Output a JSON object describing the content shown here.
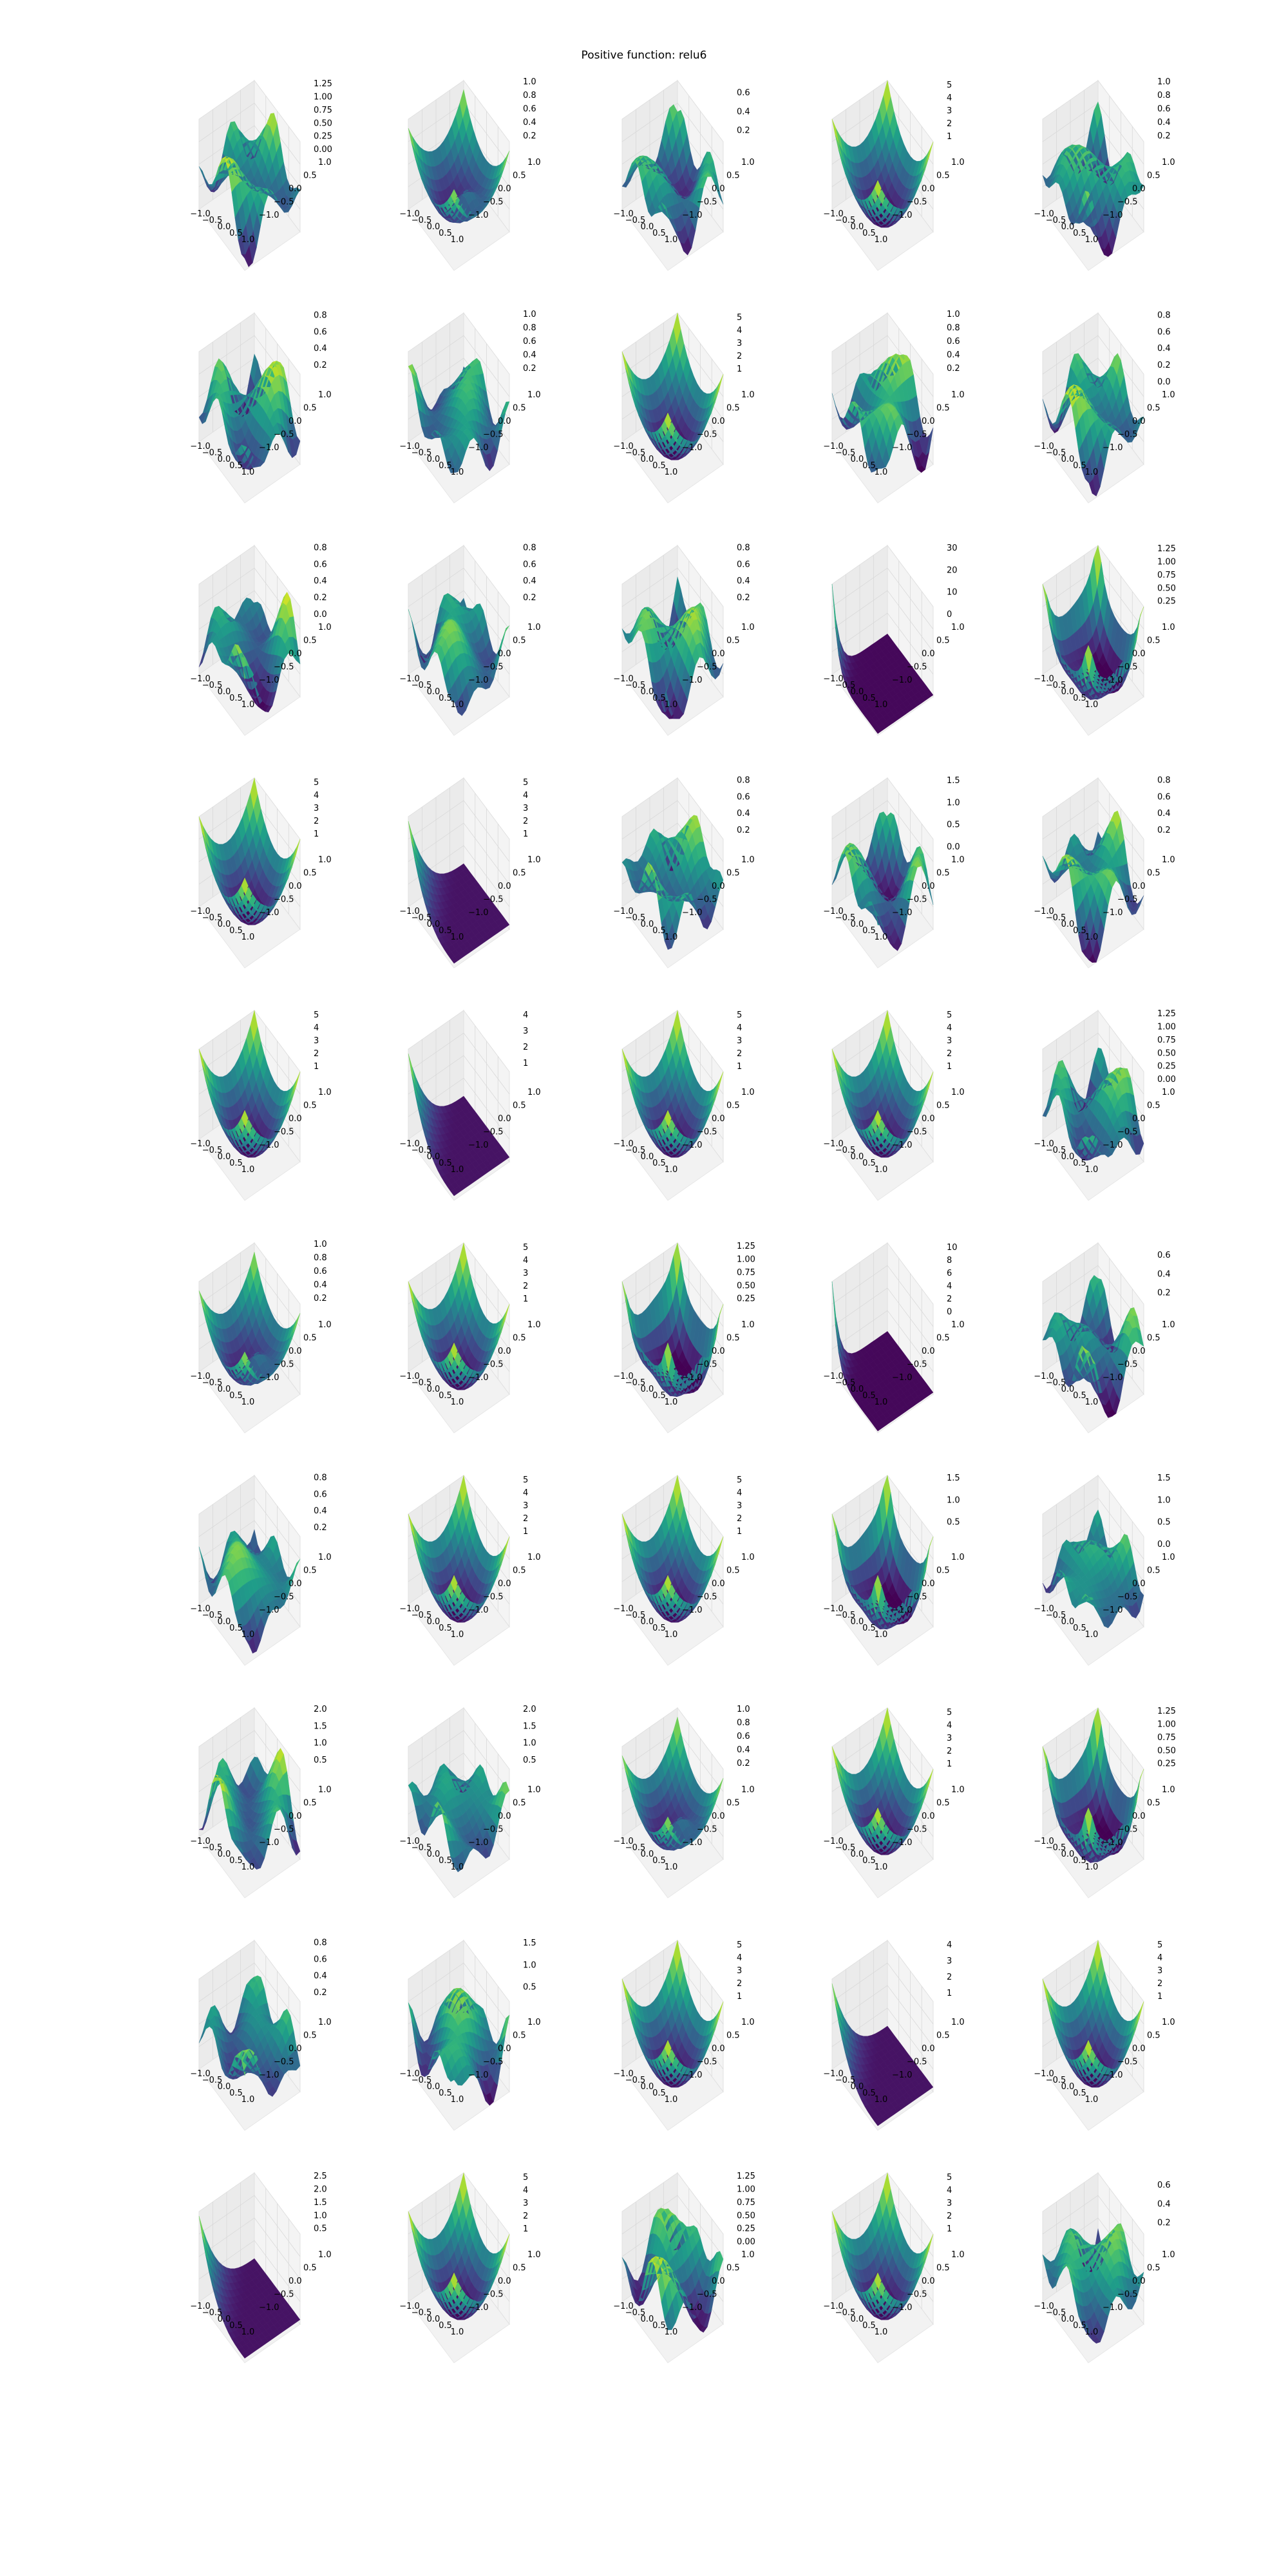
{
  "figure": {
    "title": "Positive function: relu6"
  },
  "colors": {
    "colormap": "viridis",
    "pane": "#f2f2f2",
    "grid": "#d9d9d9"
  },
  "chart_data": {
    "type": "surface",
    "grid": {
      "rows": 10,
      "cols": 5
    },
    "x_ticks": [
      "−1.0",
      "−0.5",
      "0.0",
      "0.5",
      "1.0"
    ],
    "y_ticks": [
      "1.0",
      "0.5",
      "0.0",
      "−0.5",
      "−1.0"
    ],
    "xlim": [
      -1,
      1
    ],
    "ylim": [
      -1,
      1
    ],
    "panels": [
      {
        "zlim": [
          0,
          1.35
        ],
        "z_ticks": [
          "0.00",
          "0.25",
          "0.50",
          "0.75",
          "1.00",
          "1.25"
        ],
        "shape": "bumpy"
      },
      {
        "zlim": [
          0,
          1.05
        ],
        "z_ticks": [
          "0.2",
          "0.4",
          "0.6",
          "0.8",
          "1.0"
        ],
        "shape": "bowl-peak"
      },
      {
        "zlim": [
          0,
          0.75
        ],
        "z_ticks": [
          "0.2",
          "0.4",
          "0.6"
        ],
        "shape": "bumpy"
      },
      {
        "zlim": [
          0,
          5.5
        ],
        "z_ticks": [
          "1",
          "2",
          "3",
          "4",
          "5"
        ],
        "shape": "bowl"
      },
      {
        "zlim": [
          0,
          1.05
        ],
        "z_ticks": [
          "0.2",
          "0.4",
          "0.6",
          "0.8",
          "1.0"
        ],
        "shape": "bumpy"
      },
      {
        "zlim": [
          0,
          0.85
        ],
        "z_ticks": [
          "0.2",
          "0.4",
          "0.6",
          "0.8"
        ],
        "shape": "bumpy"
      },
      {
        "zlim": [
          0,
          1.05
        ],
        "z_ticks": [
          "0.2",
          "0.4",
          "0.6",
          "0.8",
          "1.0"
        ],
        "shape": "bumpy"
      },
      {
        "zlim": [
          0,
          5.5
        ],
        "z_ticks": [
          "1",
          "2",
          "3",
          "4",
          "5"
        ],
        "shape": "bowl"
      },
      {
        "zlim": [
          0,
          1.05
        ],
        "z_ticks": [
          "0.2",
          "0.4",
          "0.6",
          "0.8",
          "1.0"
        ],
        "shape": "bumpy"
      },
      {
        "zlim": [
          0,
          0.85
        ],
        "z_ticks": [
          "0.0",
          "0.2",
          "0.4",
          "0.6",
          "0.8"
        ],
        "shape": "bumpy"
      },
      {
        "zlim": [
          0,
          0.85
        ],
        "z_ticks": [
          "0.0",
          "0.2",
          "0.4",
          "0.6",
          "0.8"
        ],
        "shape": "bumpy"
      },
      {
        "zlim": [
          0,
          0.85
        ],
        "z_ticks": [
          "0.2",
          "0.4",
          "0.6",
          "0.8"
        ],
        "shape": "bumpy"
      },
      {
        "zlim": [
          0,
          0.85
        ],
        "z_ticks": [
          "0.2",
          "0.4",
          "0.6",
          "0.8"
        ],
        "shape": "bumpy"
      },
      {
        "zlim": [
          0,
          32
        ],
        "z_ticks": [
          "0",
          "10",
          "20",
          "30"
        ],
        "shape": "spike"
      },
      {
        "zlim": [
          0,
          1.35
        ],
        "z_ticks": [
          "0.25",
          "0.50",
          "0.75",
          "1.00",
          "1.25"
        ],
        "shape": "bowl-soft"
      },
      {
        "zlim": [
          0,
          5.5
        ],
        "z_ticks": [
          "1",
          "2",
          "3",
          "4",
          "5"
        ],
        "shape": "bowl"
      },
      {
        "zlim": [
          0,
          5.5
        ],
        "z_ticks": [
          "1",
          "2",
          "3",
          "4",
          "5"
        ],
        "shape": "flat-corner"
      },
      {
        "zlim": [
          0,
          0.85
        ],
        "z_ticks": [
          "0.2",
          "0.4",
          "0.6",
          "0.8"
        ],
        "shape": "bumpy"
      },
      {
        "zlim": [
          0,
          1.6
        ],
        "z_ticks": [
          "0.0",
          "0.5",
          "1.0",
          "1.5"
        ],
        "shape": "bumpy"
      },
      {
        "zlim": [
          0,
          0.85
        ],
        "z_ticks": [
          "0.2",
          "0.4",
          "0.6",
          "0.8"
        ],
        "shape": "bumpy"
      },
      {
        "zlim": [
          0,
          5.5
        ],
        "z_ticks": [
          "1",
          "2",
          "3",
          "4",
          "5"
        ],
        "shape": "bowl"
      },
      {
        "zlim": [
          0,
          4.4
        ],
        "z_ticks": [
          "1",
          "2",
          "3",
          "4"
        ],
        "shape": "flat-corner"
      },
      {
        "zlim": [
          0,
          5.5
        ],
        "z_ticks": [
          "1",
          "2",
          "3",
          "4",
          "5"
        ],
        "shape": "bowl"
      },
      {
        "zlim": [
          0,
          5.5
        ],
        "z_ticks": [
          "1",
          "2",
          "3",
          "4",
          "5"
        ],
        "shape": "bowl"
      },
      {
        "zlim": [
          0,
          1.35
        ],
        "z_ticks": [
          "0.00",
          "0.25",
          "0.50",
          "0.75",
          "1.00",
          "1.25"
        ],
        "shape": "bumpy"
      },
      {
        "zlim": [
          0,
          1.05
        ],
        "z_ticks": [
          "0.2",
          "0.4",
          "0.6",
          "0.8",
          "1.0"
        ],
        "shape": "bowl-peak"
      },
      {
        "zlim": [
          0,
          5.5
        ],
        "z_ticks": [
          "1",
          "2",
          "3",
          "4",
          "5"
        ],
        "shape": "bowl"
      },
      {
        "zlim": [
          0,
          1.35
        ],
        "z_ticks": [
          "0.25",
          "0.50",
          "0.75",
          "1.00",
          "1.25"
        ],
        "shape": "bowl-soft"
      },
      {
        "zlim": [
          0,
          11
        ],
        "z_ticks": [
          "0",
          "2",
          "4",
          "6",
          "8",
          "10"
        ],
        "shape": "spike"
      },
      {
        "zlim": [
          0,
          0.75
        ],
        "z_ticks": [
          "0.2",
          "0.4",
          "0.6"
        ],
        "shape": "bumpy"
      },
      {
        "zlim": [
          0,
          0.85
        ],
        "z_ticks": [
          "0.2",
          "0.4",
          "0.6",
          "0.8"
        ],
        "shape": "bumpy"
      },
      {
        "zlim": [
          0,
          5.5
        ],
        "z_ticks": [
          "1",
          "2",
          "3",
          "4",
          "5"
        ],
        "shape": "bowl"
      },
      {
        "zlim": [
          0,
          5.5
        ],
        "z_ticks": [
          "1",
          "2",
          "3",
          "4",
          "5"
        ],
        "shape": "bowl"
      },
      {
        "zlim": [
          0,
          1.6
        ],
        "z_ticks": [
          "0.5",
          "1.0",
          "1.5"
        ],
        "shape": "bowl-soft"
      },
      {
        "zlim": [
          0,
          1.6
        ],
        "z_ticks": [
          "0.0",
          "0.5",
          "1.0",
          "1.5"
        ],
        "shape": "bumpy"
      },
      {
        "zlim": [
          0,
          2.1
        ],
        "z_ticks": [
          "0.5",
          "1.0",
          "1.5",
          "2.0"
        ],
        "shape": "bumpy"
      },
      {
        "zlim": [
          0,
          2.1
        ],
        "z_ticks": [
          "0.5",
          "1.0",
          "1.5",
          "2.0"
        ],
        "shape": "bumpy"
      },
      {
        "zlim": [
          0,
          1.05
        ],
        "z_ticks": [
          "0.2",
          "0.4",
          "0.6",
          "0.8",
          "1.0"
        ],
        "shape": "bowl-peak"
      },
      {
        "zlim": [
          0,
          5.5
        ],
        "z_ticks": [
          "1",
          "2",
          "3",
          "4",
          "5"
        ],
        "shape": "bowl"
      },
      {
        "zlim": [
          0,
          1.35
        ],
        "z_ticks": [
          "0.25",
          "0.50",
          "0.75",
          "1.00",
          "1.25"
        ],
        "shape": "bowl-soft"
      },
      {
        "zlim": [
          0,
          0.85
        ],
        "z_ticks": [
          "0.2",
          "0.4",
          "0.6",
          "0.8"
        ],
        "shape": "bumpy"
      },
      {
        "zlim": [
          0,
          1.6
        ],
        "z_ticks": [
          "0.5",
          "1.0",
          "1.5"
        ],
        "shape": "bumpy"
      },
      {
        "zlim": [
          0,
          5.5
        ],
        "z_ticks": [
          "1",
          "2",
          "3",
          "4",
          "5"
        ],
        "shape": "bowl"
      },
      {
        "zlim": [
          0,
          4.4
        ],
        "z_ticks": [
          "1",
          "2",
          "3",
          "4"
        ],
        "shape": "flat-corner"
      },
      {
        "zlim": [
          0,
          5.5
        ],
        "z_ticks": [
          "1",
          "2",
          "3",
          "4",
          "5"
        ],
        "shape": "bowl"
      },
      {
        "zlim": [
          0,
          2.7
        ],
        "z_ticks": [
          "0.5",
          "1.0",
          "1.5",
          "2.0",
          "2.5"
        ],
        "shape": "flat-corner"
      },
      {
        "zlim": [
          0,
          5.5
        ],
        "z_ticks": [
          "1",
          "2",
          "3",
          "4",
          "5"
        ],
        "shape": "bowl"
      },
      {
        "zlim": [
          0,
          1.35
        ],
        "z_ticks": [
          "0.00",
          "0.25",
          "0.50",
          "0.75",
          "1.00",
          "1.25"
        ],
        "shape": "bumpy"
      },
      {
        "zlim": [
          0,
          5.5
        ],
        "z_ticks": [
          "1",
          "2",
          "3",
          "4",
          "5"
        ],
        "shape": "bowl"
      },
      {
        "zlim": [
          0,
          0.75
        ],
        "z_ticks": [
          "0.2",
          "0.4",
          "0.6"
        ],
        "shape": "bumpy"
      }
    ]
  }
}
